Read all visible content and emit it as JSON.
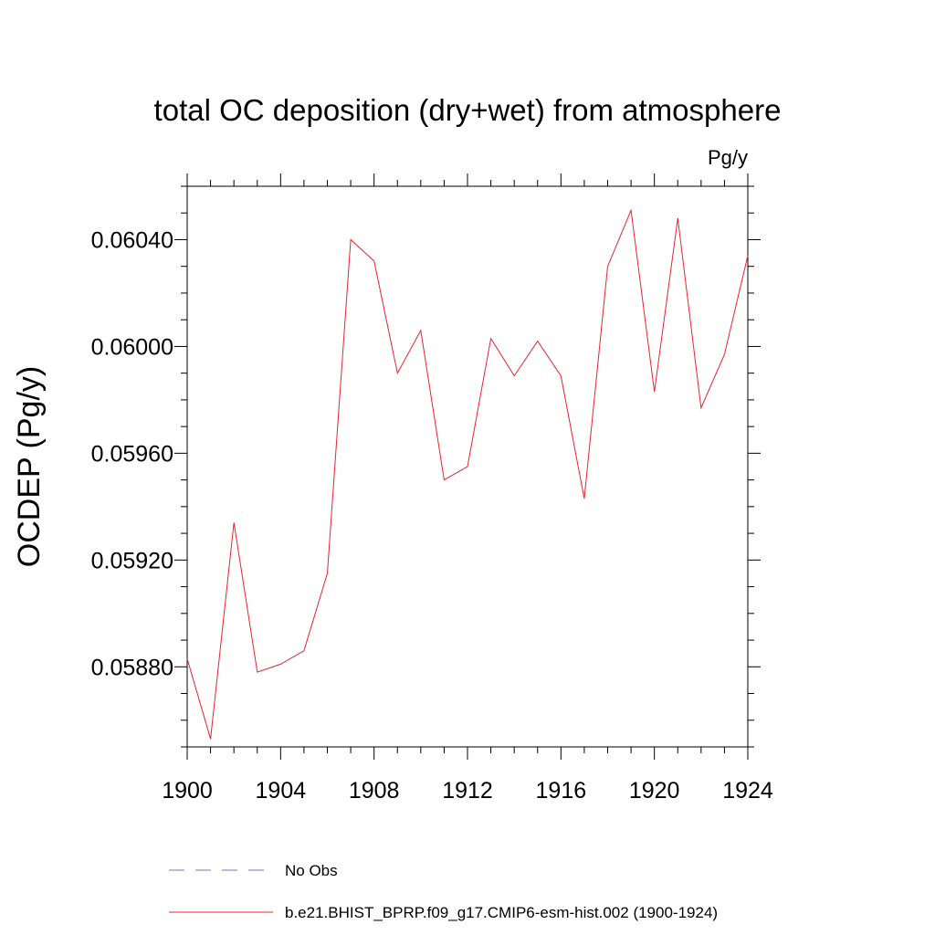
{
  "chart_data": {
    "type": "line",
    "title": "total OC deposition (dry+wet) from atmosphere",
    "units": "Pg/y",
    "xlabel": "",
    "ylabel": "OCDEP  (Pg/y)",
    "xlim": [
      1900,
      1924
    ],
    "ylim": [
      0.0585,
      0.0606
    ],
    "xticks": [
      1900,
      1904,
      1908,
      1912,
      1916,
      1920,
      1924
    ],
    "xtick_labels": [
      "1900",
      "1904",
      "1908",
      "1912",
      "1916",
      "1920",
      "1924"
    ],
    "yticks": [
      0.0588,
      0.0592,
      0.0596,
      0.06,
      0.0604
    ],
    "ytick_labels": [
      "0.05880",
      "0.05920",
      "0.05960",
      "0.06000",
      "0.06040"
    ],
    "series": [
      {
        "name": "b.e21.BHIST_BPRP.f09_g17.CMIP6-esm-hist.002 (1900-1924)",
        "color": "#e8242b",
        "style": "solid",
        "x": [
          1900,
          1901,
          1902,
          1903,
          1904,
          1905,
          1906,
          1907,
          1908,
          1909,
          1910,
          1911,
          1912,
          1913,
          1914,
          1915,
          1916,
          1917,
          1918,
          1919,
          1920,
          1921,
          1922,
          1923,
          1924
        ],
        "y": [
          0.05883,
          0.05853,
          0.05934,
          0.05878,
          0.05881,
          0.05886,
          0.05915,
          0.0604,
          0.06032,
          0.0599,
          0.06006,
          0.0595,
          0.05955,
          0.06003,
          0.05989,
          0.06002,
          0.05989,
          0.05943,
          0.0603,
          0.06051,
          0.05983,
          0.06048,
          0.05977,
          0.05997,
          0.06034
        ]
      }
    ],
    "legend": [
      {
        "label": "No Obs",
        "color": "#7b6fc4",
        "style": "dashed"
      },
      {
        "label": "b.e21.BHIST_BPRP.f09_g17.CMIP6-esm-hist.002 (1900-1924)",
        "color": "#e8242b",
        "style": "solid"
      }
    ],
    "legend_position": "bottom",
    "grid": false
  }
}
